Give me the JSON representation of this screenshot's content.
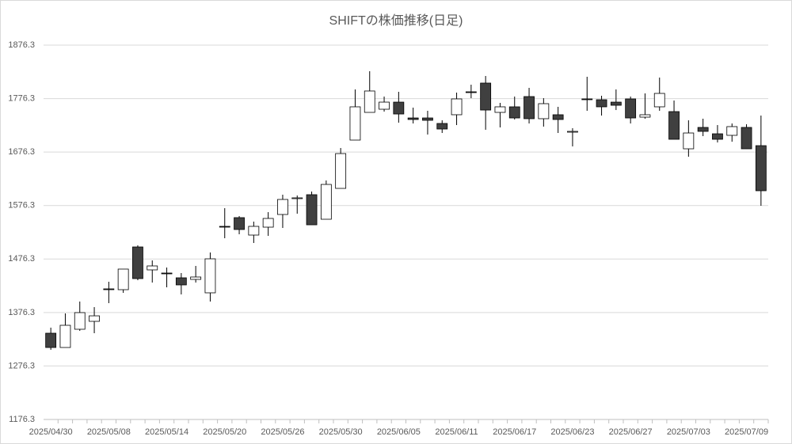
{
  "chart_data": {
    "type": "candlestick",
    "title": "SHIFTの株価推移(日足)",
    "categories": [
      "2025/04/30",
      null,
      null,
      null,
      "2025/05/08",
      null,
      null,
      null,
      "2025/05/14",
      null,
      null,
      null,
      "2025/05/20",
      null,
      null,
      null,
      "2025/05/26",
      null,
      null,
      null,
      "2025/05/30",
      null,
      null,
      null,
      "2025/06/05",
      null,
      null,
      null,
      "2025/06/11",
      null,
      null,
      null,
      "2025/06/17",
      null,
      null,
      null,
      "2025/06/23",
      null,
      null,
      null,
      "2025/06/27",
      null,
      null,
      null,
      "2025/07/03",
      null,
      null,
      null,
      "2025/07/09",
      null
    ],
    "open": [
      1337.6,
      1310.9,
      1345.0,
      1359.8,
      1420.5,
      1419.0,
      1498.9,
      1456.0,
      1450.1,
      1441.2,
      1438.2,
      1413.1,
      1537.4,
      1553.7,
      1521.1,
      1535.9,
      1559.6,
      1589.2,
      1596.6,
      1550.7,
      1608.4,
      1698.7,
      1750.5,
      1756.4,
      1769.7,
      1740.1,
      1740.1,
      1729.8,
      1746.1,
      1789.0,
      1805.3,
      1750.5,
      1760.9,
      1780.1,
      1738.7,
      1746.1,
      1713.5,
      1775.7,
      1774.2,
      1769.7,
      1775.7,
      1741.6,
      1760.9,
      1752.0,
      1682.4,
      1722.4,
      1710.5,
      1707.6,
      1722.4,
      1688.3
    ],
    "high": [
      1348.0,
      1374.6,
      1396.8,
      1386.4,
      1433.8,
      1457.5,
      1501.9,
      1473.7,
      1460.4,
      1450.1,
      1463.4,
      1488.5,
      1571.4,
      1556.6,
      1546.3,
      1564.0,
      1596.6,
      1595.1,
      1602.5,
      1623.2,
      1683.9,
      1793.4,
      1827.5,
      1780.1,
      1789.0,
      1759.4,
      1753.5,
      1735.7,
      1787.5,
      1802.3,
      1818.6,
      1768.3,
      1780.1,
      1796.4,
      1777.1,
      1760.9,
      1720.9,
      1817.1,
      1781.6,
      1793.4,
      1780.1,
      1786.0,
      1815.6,
      1772.7,
      1735.7,
      1738.7,
      1726.8,
      1729.8,
      1728.3,
      1744.6
    ],
    "low": [
      1306.5,
      1310.9,
      1342.0,
      1337.6,
      1393.8,
      1413.1,
      1436.7,
      1432.3,
      1423.4,
      1410.1,
      1432.3,
      1396.8,
      1515.2,
      1522.6,
      1506.3,
      1519.6,
      1534.4,
      1561.1,
      1540.3,
      1550.7,
      1608.4,
      1698.7,
      1750.5,
      1752.0,
      1731.3,
      1729.8,
      1709.1,
      1712.0,
      1726.8,
      1777.1,
      1718.0,
      1722.4,
      1737.2,
      1729.8,
      1723.9,
      1712.0,
      1686.9,
      1753.5,
      1744.6,
      1754.9,
      1729.8,
      1738.7,
      1753.5,
      1700.2,
      1667.6,
      1706.1,
      1694.3,
      1695.7,
      1682.4,
      1575.9
    ],
    "close": [
      1310.9,
      1352.4,
      1376.1,
      1370.1,
      1419.0,
      1457.5,
      1439.7,
      1463.4,
      1448.6,
      1427.9,
      1442.7,
      1476.7,
      1536.0,
      1531.5,
      1537.4,
      1552.2,
      1587.7,
      1590.7,
      1540.3,
      1615.8,
      1673.5,
      1760.9,
      1790.5,
      1769.7,
      1747.5,
      1737.2,
      1735.7,
      1719.4,
      1775.7,
      1787.5,
      1754.9,
      1760.9,
      1740.1,
      1738.7,
      1766.8,
      1737.2,
      1715.0,
      1774.2,
      1760.9,
      1763.8,
      1740.1,
      1746.1,
      1786.0,
      1700.2,
      1712.0,
      1715.0,
      1700.2,
      1723.9,
      1682.4,
      1604.0
    ],
    "up_color": "#ffffff",
    "down_color": "#404040",
    "ylim": [
      1176.3,
      1876.3
    ],
    "yticks": [
      1176.3,
      1276.3,
      1376.3,
      1476.3,
      1576.3,
      1676.3,
      1776.3,
      1876.3
    ],
    "grid": true
  }
}
